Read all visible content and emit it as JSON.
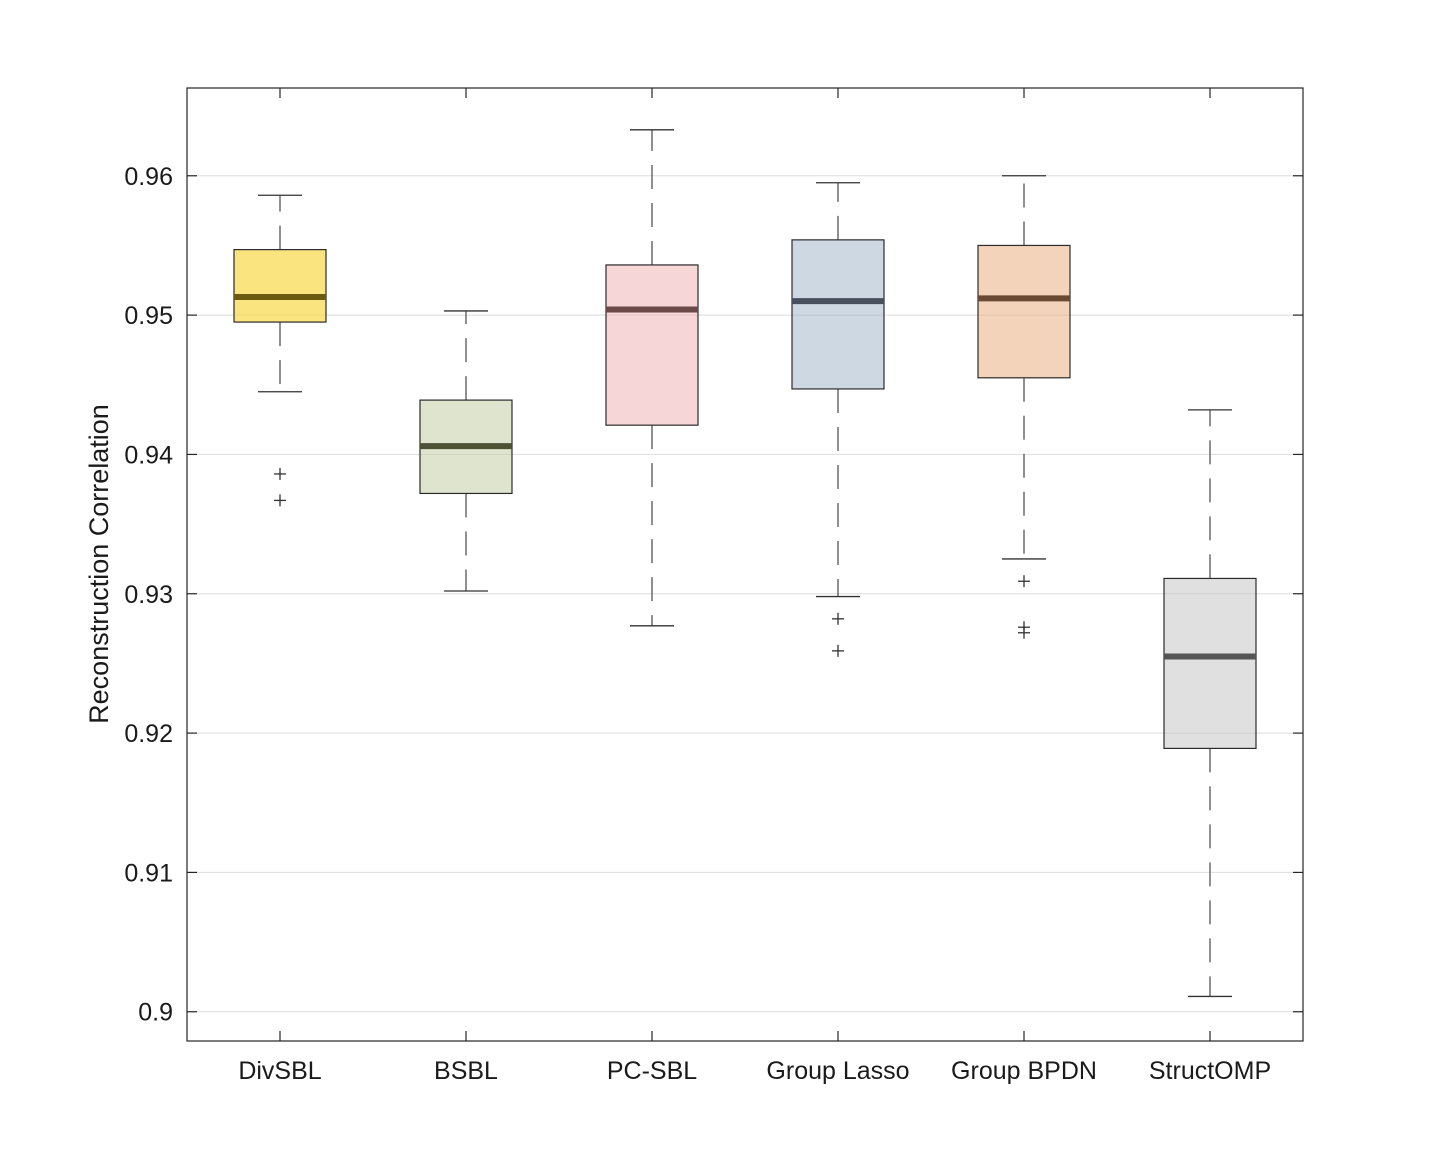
{
  "chart_data": {
    "type": "boxplot",
    "title": "",
    "xlabel": "",
    "ylabel": "Reconstruction Correlation",
    "ylim": [
      0.8979,
      0.9663
    ],
    "yticks": [
      0.9,
      0.91,
      0.92,
      0.93,
      0.94,
      0.95,
      0.96
    ],
    "ytick_labels": [
      "0.9",
      "0.91",
      "0.92",
      "0.93",
      "0.94",
      "0.95",
      "0.96"
    ],
    "grid": "horizontal",
    "categories": [
      "DivSBL",
      "BSBL",
      "PC-SBL",
      "Group Lasso",
      "Group BPDN",
      "StructOMP"
    ],
    "boxes": [
      {
        "name": "DivSBL",
        "whisker_low": 0.9445,
        "q1": 0.9495,
        "median": 0.9513,
        "q3": 0.9547,
        "whisker_high": 0.9586,
        "outliers": [
          0.9386,
          0.9367
        ],
        "fill": "#f7d94a",
        "fill_opacity": 0.7,
        "median_color": "#6b5a10"
      },
      {
        "name": "BSBL",
        "whisker_low": 0.9302,
        "q1": 0.9372,
        "median": 0.9406,
        "q3": 0.9439,
        "whisker_high": 0.9503,
        "outliers": [],
        "fill": "#b9c796",
        "fill_opacity": 0.48,
        "median_color": "#4d5236"
      },
      {
        "name": "PC-SBL",
        "whisker_low": 0.9277,
        "q1": 0.9421,
        "median": 0.9504,
        "q3": 0.9536,
        "whisker_high": 0.9633,
        "outliers": [],
        "fill": "#eaa3a3",
        "fill_opacity": 0.45,
        "median_color": "#6b4a48"
      },
      {
        "name": "Group Lasso",
        "whisker_low": 0.9298,
        "q1": 0.9447,
        "median": 0.951,
        "q3": 0.9554,
        "whisker_high": 0.9595,
        "outliers": [
          0.9282,
          0.9259
        ],
        "fill": "#9eb1c8",
        "fill_opacity": 0.5,
        "median_color": "#47505c"
      },
      {
        "name": "Group BPDN",
        "whisker_low": 0.9325,
        "q1": 0.9455,
        "median": 0.9512,
        "q3": 0.955,
        "whisker_high": 0.96,
        "outliers": [
          0.9309,
          0.9276,
          0.9272
        ],
        "fill": "#e9a878",
        "fill_opacity": 0.5,
        "median_color": "#6a4a33"
      },
      {
        "name": "StructOMP",
        "whisker_low": 0.9011,
        "q1": 0.9189,
        "median": 0.9255,
        "q3": 0.9311,
        "whisker_high": 0.9432,
        "outliers": [],
        "fill": "#c2c2c2",
        "fill_opacity": 0.5,
        "median_color": "#555555"
      }
    ]
  }
}
